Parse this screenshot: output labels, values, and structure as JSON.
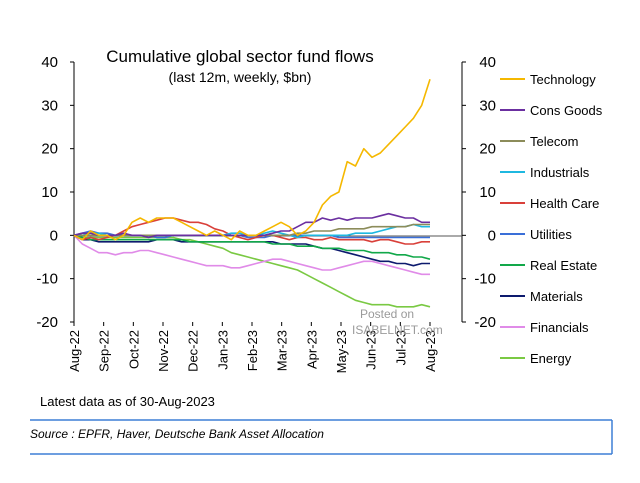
{
  "chart_data": {
    "type": "line",
    "title": "Cumulative global sector fund flows",
    "subtitle": "(last 12m, weekly, $bn)",
    "xlabel": "",
    "ylabel": "",
    "ylim": [
      -20,
      40
    ],
    "yticks": [
      40,
      30,
      20,
      10,
      0,
      -10,
      -20
    ],
    "x_ticks": [
      "Aug-22",
      "Sep-22",
      "Oct-22",
      "Nov-22",
      "Dec-22",
      "Jan-23",
      "Feb-23",
      "Mar-23",
      "Apr-23",
      "May-23",
      "Jun-23",
      "Jul-23",
      "Aug-23"
    ],
    "legend_position": "right",
    "grid": false,
    "series": [
      {
        "name": "Technology",
        "color": "#f5b800",
        "values": [
          0,
          -1,
          1,
          0,
          0,
          -1,
          0,
          3,
          4,
          3,
          4,
          4,
          4,
          3,
          2,
          1,
          0,
          1,
          0,
          -1,
          1,
          0,
          0,
          1,
          2,
          3,
          2,
          0,
          1,
          3,
          7,
          9,
          10,
          17,
          16,
          20,
          18,
          19,
          21,
          23,
          25,
          27,
          30,
          36
        ]
      },
      {
        "name": "Cons Goods",
        "color": "#6b2fa0",
        "values": [
          0,
          0.5,
          0.5,
          0,
          0,
          0,
          0.5,
          0,
          0,
          -0.5,
          0,
          0,
          0,
          0,
          0,
          0,
          0,
          0,
          0,
          0,
          0,
          0,
          0,
          0,
          0.5,
          1,
          1,
          2,
          3,
          3,
          4,
          3.5,
          4,
          3.5,
          4,
          4,
          4,
          4.5,
          5,
          4.5,
          4,
          4,
          3,
          3
        ]
      },
      {
        "name": "Telecom",
        "color": "#8c8c5a",
        "values": [
          0,
          0,
          0,
          0,
          0,
          0,
          0,
          0,
          0,
          0,
          0,
          0,
          0,
          0,
          0,
          0,
          0,
          0,
          0,
          0,
          0,
          0,
          0,
          0,
          0,
          0,
          0,
          0.5,
          0.5,
          1,
          1,
          1,
          1.5,
          1.5,
          1.5,
          1.5,
          2,
          2,
          2,
          2,
          2,
          2.5,
          2.5,
          2.5
        ]
      },
      {
        "name": "Industrials",
        "color": "#1fb8e0",
        "values": [
          0,
          0,
          0.5,
          0.5,
          0,
          0,
          0,
          0,
          0,
          0,
          0,
          0,
          0,
          0,
          0,
          0,
          0,
          0,
          0,
          0.5,
          0.5,
          0,
          0,
          0.5,
          1,
          0.5,
          0,
          -0.5,
          0,
          0,
          0,
          0,
          0,
          0,
          0.5,
          0.5,
          0.5,
          1,
          1.5,
          2,
          2,
          2.5,
          2,
          2
        ]
      },
      {
        "name": "Health Care",
        "color": "#d9403a",
        "values": [
          0,
          -1,
          -0.5,
          -1,
          -0.5,
          0,
          1,
          2,
          2.5,
          3,
          3.5,
          4,
          4,
          3.5,
          3,
          3,
          2.5,
          1.5,
          1,
          0,
          -0.5,
          -1,
          -0.5,
          0,
          0,
          -0.5,
          -1,
          -0.5,
          -0.5,
          -1,
          -1,
          -0.5,
          -1,
          -1,
          -1,
          -1,
          -1.5,
          -1,
          -1,
          -1.5,
          -2,
          -2,
          -1.5,
          -1.5
        ]
      },
      {
        "name": "Utilities",
        "color": "#3a6fd8",
        "values": [
          0,
          0.5,
          1,
          0.5,
          0.5,
          0,
          0,
          0,
          0,
          0,
          -0.5,
          -0.5,
          0,
          0,
          0,
          0,
          0,
          0,
          0,
          0,
          0,
          -0.5,
          -0.5,
          -0.5,
          0,
          0,
          0,
          0,
          0,
          0,
          0,
          0,
          -0.5,
          -0.5,
          -0.5,
          -0.5,
          -0.5,
          -0.5,
          -0.5,
          -0.5,
          -0.5,
          -0.5,
          -0.5,
          -0.5
        ]
      },
      {
        "name": "Real Estate",
        "color": "#12a84a",
        "values": [
          0,
          -0.5,
          -1,
          -1,
          -1,
          -1,
          -1,
          -1,
          -1,
          -1,
          -1,
          -1,
          -1,
          -1,
          -1.5,
          -1.5,
          -1.5,
          -1.5,
          -1.5,
          -1.5,
          -1.5,
          -1.5,
          -1.5,
          -1.5,
          -2,
          -2,
          -2,
          -2.5,
          -2.5,
          -2.5,
          -3,
          -3,
          -3,
          -3.5,
          -3.5,
          -3.5,
          -4,
          -4,
          -4,
          -4.5,
          -4.5,
          -5,
          -5,
          -5.5
        ]
      },
      {
        "name": "Materials",
        "color": "#0d1a6e",
        "values": [
          0,
          -1,
          -1,
          -1.5,
          -1.5,
          -1.5,
          -1.5,
          -1.5,
          -1.5,
          -1.5,
          -1,
          -1,
          -1,
          -1.5,
          -1.5,
          -1.5,
          -1.5,
          -1.5,
          -1.5,
          -1.5,
          -1.5,
          -1.5,
          -1.5,
          -1.5,
          -1.5,
          -2,
          -2,
          -2,
          -2,
          -2.5,
          -3,
          -3,
          -3.5,
          -4,
          -4.5,
          -5,
          -5.5,
          -6,
          -6,
          -6.5,
          -6.5,
          -7,
          -6.5,
          -6.5
        ]
      },
      {
        "name": "Financials",
        "color": "#e08be8",
        "values": [
          0,
          -2,
          -3,
          -4,
          -4,
          -4.5,
          -4,
          -4,
          -3.5,
          -3.5,
          -4,
          -4.5,
          -5,
          -5.5,
          -6,
          -6.5,
          -7,
          -7,
          -7,
          -7.5,
          -7.5,
          -7,
          -6.5,
          -6,
          -5.5,
          -5.5,
          -6,
          -6.5,
          -7,
          -7.5,
          -8,
          -8,
          -7.5,
          -7,
          -6.5,
          -6,
          -6,
          -6.5,
          -7,
          -7.5,
          -8,
          -8.5,
          -9,
          -9
        ]
      },
      {
        "name": "Energy",
        "color": "#7ac943",
        "values": [
          0,
          -0.5,
          -0.5,
          -0.5,
          -0.5,
          -0.5,
          -0.5,
          -0.5,
          -0.5,
          -0.5,
          -0.5,
          -0.5,
          -0.5,
          -1,
          -1,
          -1.5,
          -2,
          -2.5,
          -3,
          -4,
          -4.5,
          -5,
          -5.5,
          -6,
          -6.5,
          -7,
          -7.5,
          -8,
          -9,
          -10,
          -11,
          -12,
          -13,
          -14,
          -15,
          -15.5,
          -16,
          -16,
          -16,
          -16.5,
          -16.5,
          -16.5,
          -16,
          -16.5
        ]
      }
    ],
    "annotations": [
      "Latest data as of 30-Aug-2023"
    ],
    "source": "Source : EPFR, Haver, Deutsche Bank Asset Allocation",
    "watermark": [
      "Posted on",
      "ISABELNET.com"
    ]
  }
}
